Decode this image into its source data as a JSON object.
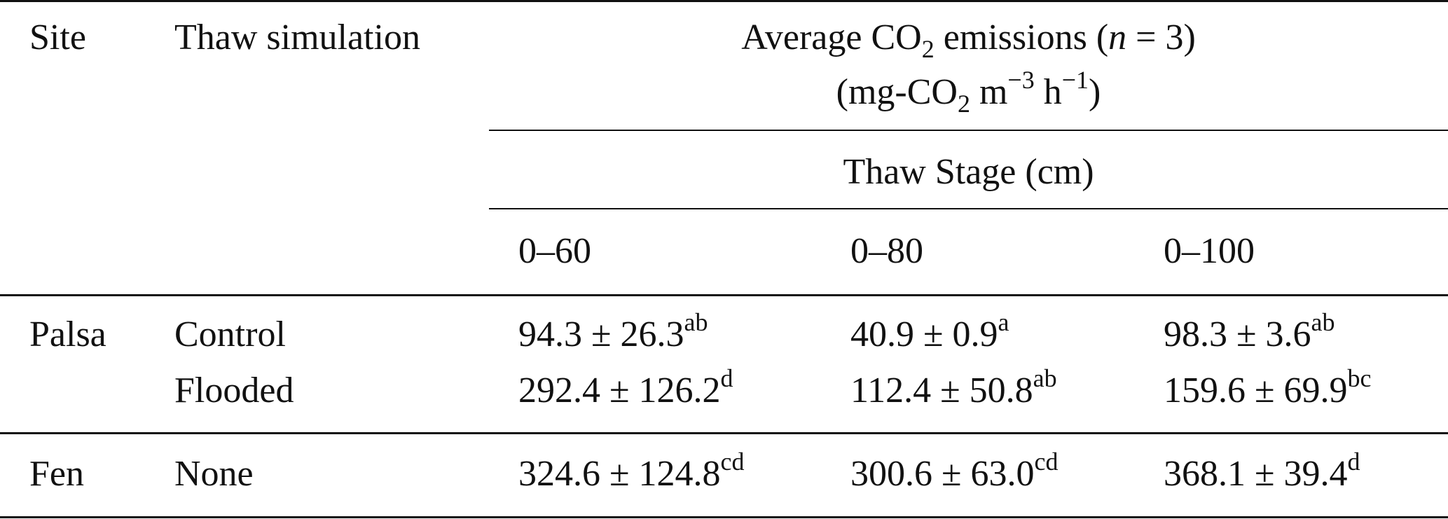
{
  "header": {
    "site": "Site",
    "thaw_simulation": "Thaw simulation",
    "avg_title": {
      "pre": "Average CO",
      "sub": "2",
      "mid": " emissions (",
      "n": "n",
      "post": " = 3)"
    },
    "units": {
      "pre": "(mg-CO",
      "sub": "2",
      "m": " m",
      "m_exp": "−3",
      "h": " h",
      "h_exp": "−1",
      "post": ")"
    },
    "thaw_stage": "Thaw Stage (cm)",
    "stages": [
      "0–60",
      "0–80",
      "0–100"
    ]
  },
  "rows": [
    {
      "site": "Palsa",
      "simulation": "Control",
      "values": [
        {
          "v": "94.3 ± 26.3",
          "sup": "ab"
        },
        {
          "v": "40.9 ± 0.9",
          "sup": "a"
        },
        {
          "v": "98.3 ± 3.6",
          "sup": "ab"
        }
      ]
    },
    {
      "site": "",
      "simulation": "Flooded",
      "values": [
        {
          "v": "292.4 ± 126.2",
          "sup": "d"
        },
        {
          "v": "112.4 ± 50.8",
          "sup": "ab"
        },
        {
          "v": "159.6 ± 69.9",
          "sup": "bc"
        }
      ]
    },
    {
      "site": "Fen",
      "simulation": "None",
      "values": [
        {
          "v": "324.6 ± 124.8",
          "sup": "cd"
        },
        {
          "v": "300.6 ± 63.0",
          "sup": "cd"
        },
        {
          "v": "368.1 ± 39.4",
          "sup": "d"
        }
      ]
    }
  ]
}
